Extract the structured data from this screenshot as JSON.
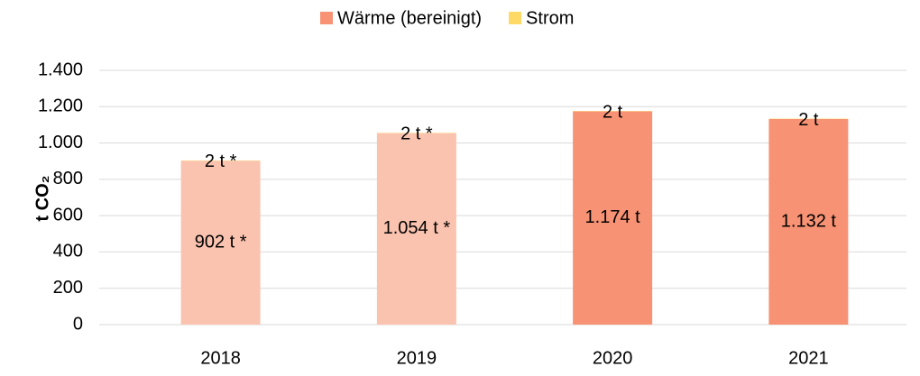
{
  "chart_data": {
    "type": "stacked_bar",
    "y_label": "t CO₂",
    "categories": [
      "2018",
      "2019",
      "2020",
      "2021"
    ],
    "series": [
      {
        "name": "Wärme (bereinigt)",
        "color": "#f79274",
        "colors": [
          "#fac3af",
          "#fac3af",
          "#f79274",
          "#f79274"
        ],
        "values": [
          902,
          1054,
          1174,
          1132
        ],
        "value_labels": [
          "902 t *",
          "1.054 t *",
          "1.174 t",
          "1.132 t"
        ]
      },
      {
        "name": "Strom",
        "color": "#ffd966",
        "values": [
          2,
          2,
          2,
          2
        ],
        "value_labels": [
          "2 t *",
          "2 t *",
          "2 t",
          "2 t"
        ]
      }
    ],
    "ylim": [
      0,
      1400
    ],
    "yticks": [
      0,
      200,
      400,
      600,
      800,
      {
        "value": 1000,
        "label": "1.000"
      },
      {
        "value": 1200,
        "label": "1.200"
      },
      {
        "value": 1400,
        "label": "1.400"
      }
    ],
    "grid": true,
    "legend": "top"
  }
}
